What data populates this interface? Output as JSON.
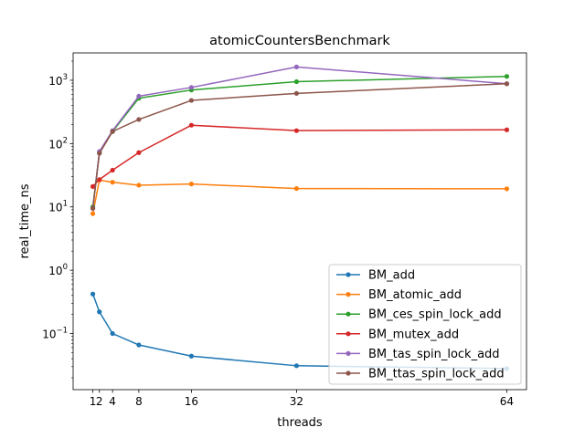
{
  "chart_data": {
    "type": "line",
    "title": "atomicCountersBenchmark",
    "xlabel": "threads",
    "ylabel": "real_time_ns",
    "yscale": "log",
    "xlim": [
      -2,
      67
    ],
    "ylim": [
      0.013,
      2700
    ],
    "x_ticks": [
      {
        "value": 1,
        "label": "1"
      },
      {
        "value": 2,
        "label": "2"
      },
      {
        "value": 4,
        "label": "4"
      },
      {
        "value": 8,
        "label": "8"
      },
      {
        "value": 16,
        "label": "16"
      },
      {
        "value": 32,
        "label": "32"
      },
      {
        "value": 64,
        "label": "64"
      }
    ],
    "y_ticks": [
      {
        "value": 0.1,
        "base": "10",
        "exp": "−1"
      },
      {
        "value": 1,
        "base": "10",
        "exp": "0"
      },
      {
        "value": 10,
        "base": "10",
        "exp": "1"
      },
      {
        "value": 100,
        "base": "10",
        "exp": "2"
      },
      {
        "value": 1000,
        "base": "10",
        "exp": "3"
      }
    ],
    "grid": false,
    "legend_position": "lower-right",
    "x": [
      1,
      2,
      4,
      8,
      16,
      32,
      64
    ],
    "series": [
      {
        "name": "BM_add",
        "color": "#1f77b4",
        "values": [
          0.42,
          0.22,
          0.1,
          0.066,
          0.044,
          0.031,
          0.028
        ]
      },
      {
        "name": "BM_atomic_add",
        "color": "#ff7f0e",
        "values": [
          7.8,
          26.5,
          24.5,
          22,
          23,
          19.5,
          19.3
        ]
      },
      {
        "name": "BM_ces_spin_lock_add",
        "color": "#2ca02c",
        "values": [
          10,
          72,
          155,
          520,
          700,
          950,
          1150
        ]
      },
      {
        "name": "BM_mutex_add",
        "color": "#d62728",
        "values": [
          21,
          27,
          38,
          72,
          195,
          160,
          165
        ]
      },
      {
        "name": "BM_tas_spin_lock_add",
        "color": "#9467bd",
        "values": [
          9.5,
          75,
          160,
          560,
          770,
          1620,
          880
        ]
      },
      {
        "name": "BM_ttas_spin_lock_add",
        "color": "#8c564b",
        "values": [
          9.5,
          70,
          155,
          240,
          480,
          620,
          880
        ]
      }
    ]
  }
}
